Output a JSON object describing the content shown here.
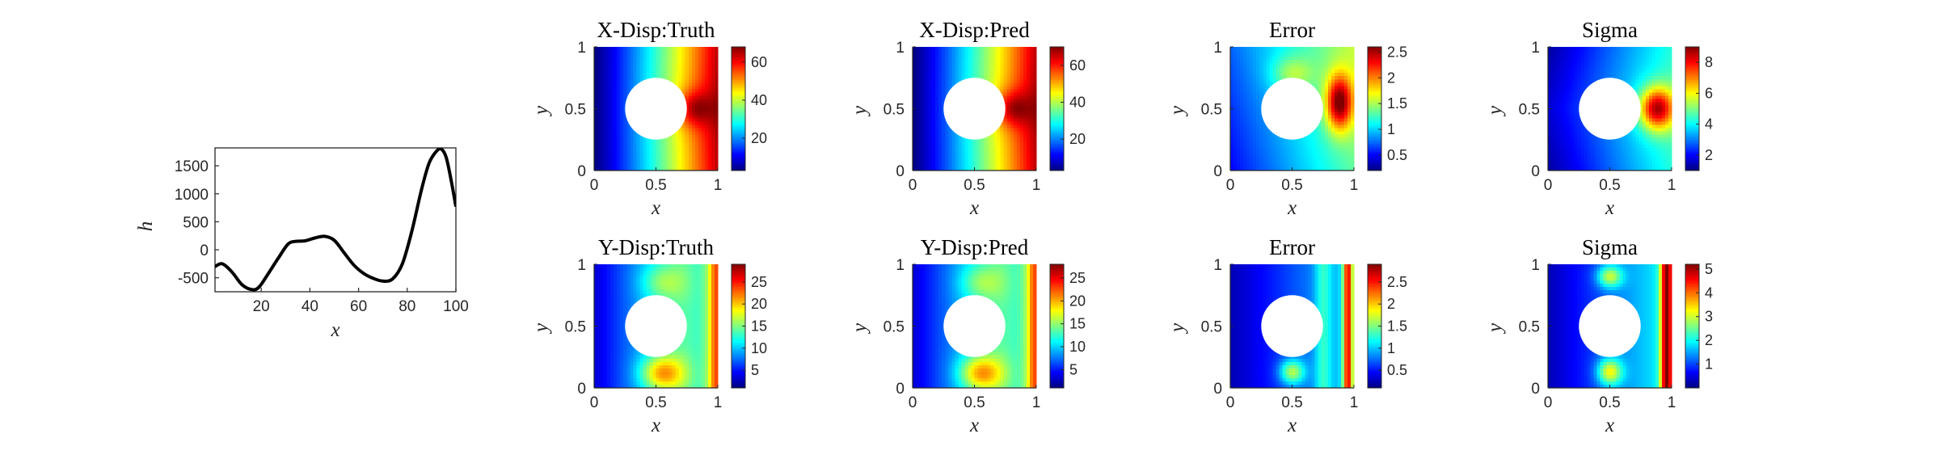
{
  "chart_data": [
    {
      "type": "line",
      "xlabel": "x",
      "ylabel": "h",
      "xlim": [
        1,
        100
      ],
      "ylim": [
        -750,
        1820
      ],
      "xticks": [
        20,
        40,
        60,
        80,
        100
      ],
      "yticks": [
        -500,
        0,
        500,
        1000,
        1500
      ],
      "series": [
        {
          "x": [
            1,
            4,
            8,
            12,
            16,
            19,
            23,
            27,
            31,
            34,
            38,
            42,
            46,
            50,
            54,
            58,
            62,
            66,
            70,
            74,
            78,
            82,
            86,
            89,
            92,
            94,
            96,
            98,
            100
          ],
          "values": [
            -300,
            -250,
            -400,
            -620,
            -710,
            -670,
            -420,
            -150,
            100,
            150,
            160,
            210,
            240,
            170,
            -50,
            -270,
            -420,
            -510,
            -560,
            -520,
            -250,
            350,
            1100,
            1550,
            1760,
            1800,
            1650,
            1250,
            770
          ]
        }
      ]
    },
    {
      "type": "heatmap",
      "title": "X-Disp:Truth",
      "xlabel": "x",
      "ylabel": "y",
      "xticks": [
        "0",
        "0.5",
        "1"
      ],
      "yticks": [
        "0",
        "0.5",
        "1"
      ],
      "hole": {
        "center": [
          0.5,
          0.5
        ],
        "radius": 0.25
      },
      "colormap": "jet",
      "clim": [
        3,
        68
      ],
      "colorbar_ticks": [
        20,
        40,
        60
      ],
      "pattern": "xdisp"
    },
    {
      "type": "heatmap",
      "title": "X-Disp:Pred",
      "xlabel": "x",
      "ylabel": "y",
      "xticks": [
        "0",
        "0.5",
        "1"
      ],
      "yticks": [
        "0",
        "0.5",
        "1"
      ],
      "hole": {
        "center": [
          0.5,
          0.5
        ],
        "radius": 0.25
      },
      "colormap": "jet",
      "clim": [
        3,
        70
      ],
      "colorbar_ticks": [
        20,
        40,
        60
      ],
      "pattern": "xdisp"
    },
    {
      "type": "heatmap",
      "title": "Error",
      "xlabel": "x",
      "ylabel": "y",
      "xticks": [
        "0",
        "0.5",
        "1"
      ],
      "yticks": [
        "0",
        "0.5",
        "1"
      ],
      "hole": {
        "center": [
          0.5,
          0.5
        ],
        "radius": 0.25
      },
      "colormap": "jet",
      "clim": [
        0.2,
        2.6
      ],
      "colorbar_ticks": [
        0.5,
        1,
        1.5,
        2,
        2.5
      ],
      "pattern": "xerr"
    },
    {
      "type": "heatmap",
      "title": "Sigma",
      "xlabel": "x",
      "ylabel": "y",
      "xticks": [
        "0",
        "0.5",
        "1"
      ],
      "yticks": [
        "0",
        "0.5",
        "1"
      ],
      "hole": {
        "center": [
          0.5,
          0.5
        ],
        "radius": 0.25
      },
      "colormap": "jet",
      "clim": [
        1,
        9
      ],
      "colorbar_ticks": [
        2,
        4,
        6,
        8
      ],
      "pattern": "xsig"
    },
    {
      "type": "heatmap",
      "title": "Y-Disp:Truth",
      "xlabel": "x",
      "ylabel": "y",
      "xticks": [
        "0",
        "0.5",
        "1"
      ],
      "yticks": [
        "0",
        "0.5",
        "1"
      ],
      "hole": {
        "center": [
          0.5,
          0.5
        ],
        "radius": 0.25
      },
      "colormap": "jet",
      "clim": [
        1,
        29
      ],
      "colorbar_ticks": [
        5,
        10,
        15,
        20,
        25
      ],
      "pattern": "ydisp"
    },
    {
      "type": "heatmap",
      "title": "Y-Disp:Pred",
      "xlabel": "x",
      "ylabel": "y",
      "xticks": [
        "0",
        "0.5",
        "1"
      ],
      "yticks": [
        "0",
        "0.5",
        "1"
      ],
      "hole": {
        "center": [
          0.5,
          0.5
        ],
        "radius": 0.25
      },
      "colormap": "jet",
      "clim": [
        1,
        28
      ],
      "colorbar_ticks": [
        5,
        10,
        15,
        20,
        25
      ],
      "pattern": "ydisp"
    },
    {
      "type": "heatmap",
      "title": "Error",
      "xlabel": "x",
      "ylabel": "y",
      "xticks": [
        "0",
        "0.5",
        "1"
      ],
      "yticks": [
        "0",
        "0.5",
        "1"
      ],
      "hole": {
        "center": [
          0.5,
          0.5
        ],
        "radius": 0.25
      },
      "colormap": "jet",
      "clim": [
        0.1,
        2.9
      ],
      "colorbar_ticks": [
        0.5,
        1,
        1.5,
        2,
        2.5
      ],
      "pattern": "yerr"
    },
    {
      "type": "heatmap",
      "title": "Sigma",
      "xlabel": "x",
      "ylabel": "y",
      "xticks": [
        "0",
        "0.5",
        "1"
      ],
      "yticks": [
        "0",
        "0.5",
        "1"
      ],
      "hole": {
        "center": [
          0.5,
          0.5
        ],
        "radius": 0.25
      },
      "colormap": "jet",
      "clim": [
        0,
        5.2
      ],
      "colorbar_ticks": [
        1,
        2,
        3,
        4,
        5
      ],
      "pattern": "ysig"
    }
  ]
}
